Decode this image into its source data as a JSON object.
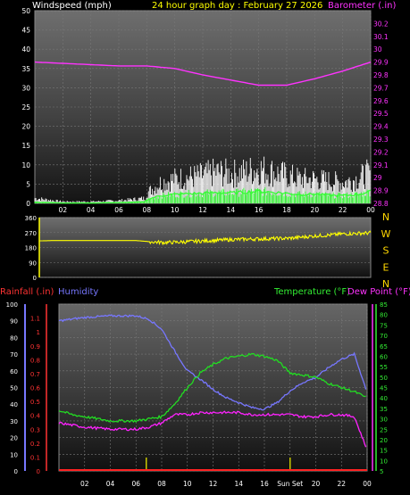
{
  "chart_data": [
    {
      "type": "line",
      "title": "24 hour graph day : February 27 2026",
      "ylabel": "Windspeed (mph)",
      "y2label": "Barometer (.in)",
      "ylim": [
        0,
        50
      ],
      "y2lim": [
        28.8,
        30.3
      ],
      "yticks": [
        0,
        5,
        10,
        15,
        20,
        25,
        30,
        35,
        40,
        45,
        50
      ],
      "y2ticks": [
        "28.8",
        "28.9",
        "29",
        "29.1",
        "29.2",
        "29.3",
        "29.4",
        "29.5",
        "29.6",
        "29.7",
        "29.8",
        "29.9",
        "30",
        "30.1",
        "30.2"
      ],
      "xticks": [
        "02",
        "04",
        "06",
        "08",
        "10",
        "12",
        "14",
        "16",
        "18",
        "20",
        "22",
        "00"
      ],
      "colors": {
        "wind_gust": "#ffffff",
        "wind_avg": "#33ff33",
        "barometer": "#ff33ff",
        "title": "#ffff00"
      },
      "series": [
        {
          "key": "barometer",
          "x": [
            0,
            2,
            4,
            6,
            8,
            10,
            12,
            14,
            16,
            18,
            20,
            22,
            24
          ],
          "values": [
            29.9,
            29.89,
            29.88,
            29.87,
            29.87,
            29.85,
            29.8,
            29.76,
            29.72,
            29.72,
            29.77,
            29.83,
            29.9
          ]
        },
        {
          "key": "wind_gust",
          "x": [
            0,
            2,
            4,
            6,
            7.9,
            8,
            9,
            10,
            11,
            12,
            13,
            14,
            15,
            16,
            17,
            18,
            19,
            20,
            21,
            22,
            23,
            24
          ],
          "values": [
            1.5,
            0.5,
            0.5,
            0.8,
            1.5,
            3,
            6,
            7,
            7.5,
            8,
            9,
            8.5,
            9,
            10,
            9,
            8,
            7,
            7,
            6.5,
            6,
            7,
            9
          ]
        },
        {
          "key": "wind_avg",
          "x": [
            0,
            2,
            4,
            6,
            7.9,
            8,
            9,
            10,
            11,
            12,
            13,
            14,
            15,
            16,
            17,
            18,
            19,
            20,
            21,
            22,
            23,
            24
          ],
          "values": [
            0.3,
            0.1,
            0.1,
            0.2,
            0.4,
            1,
            2,
            2.3,
            2.5,
            2.6,
            2.8,
            2.7,
            2.9,
            3.1,
            2.9,
            2.6,
            2.3,
            2.4,
            2.1,
            2.0,
            2.3,
            3
          ]
        }
      ]
    },
    {
      "type": "line",
      "y2labels": [
        "N",
        "W",
        "S",
        "E",
        "N"
      ],
      "ylim": [
        0,
        360
      ],
      "yticks": [
        0,
        90,
        180,
        270,
        360
      ],
      "xlim": [
        0,
        24
      ],
      "colors": {
        "direction": "#ffff00",
        "y2labels": "#ffd700"
      },
      "series": [
        {
          "key": "direction",
          "x": [
            0,
            1,
            4,
            7,
            8,
            9,
            10,
            12,
            14,
            16,
            18,
            19,
            20,
            21,
            22,
            24
          ],
          "values": [
            220,
            222,
            222,
            222,
            215,
            210,
            212,
            220,
            228,
            232,
            235,
            242,
            250,
            255,
            262,
            268
          ]
        }
      ]
    },
    {
      "type": "line",
      "ylabel": "Rainfall (.in)",
      "ylabel2": "Humidity",
      "y2label": "Temperature (°F)",
      "y2label2": "Dew Point (°F)",
      "xticks": [
        "02",
        "04",
        "06",
        "08",
        "10",
        "12",
        "14",
        "16",
        "Sun Set",
        "20",
        "22",
        "00"
      ],
      "humidity_ticks": [
        0,
        10,
        20,
        30,
        40,
        50,
        60,
        70,
        80,
        90,
        100
      ],
      "rain_ticks": [
        "0",
        "0.1",
        "0.2",
        "0.3",
        "0.4",
        "0.5",
        "0.6",
        "0.7",
        "0.8",
        "0.9",
        "1",
        "1.1"
      ],
      "temp_ticks": [
        5,
        10,
        15,
        20,
        25,
        30,
        35,
        40,
        45,
        50,
        55,
        60,
        65,
        70,
        75,
        80,
        85
      ],
      "rain_lim": [
        0,
        1.2
      ],
      "humidity_lim": [
        0,
        100
      ],
      "temp_lim": [
        5,
        85
      ],
      "sun_markers": [
        6.8,
        18.0
      ],
      "colors": {
        "humidity": "#7777ff",
        "temperature": "#22dd22",
        "dewpoint": "#ff22ff",
        "rainfall": "#ff2222",
        "sun": "#c8c800"
      },
      "series": [
        {
          "key": "humidity",
          "x": [
            0,
            1,
            2,
            4,
            6,
            7,
            8,
            9,
            10,
            11,
            12,
            13,
            14,
            15,
            16,
            17,
            18,
            19,
            20,
            21,
            22,
            23,
            24
          ],
          "values": [
            90,
            91,
            92,
            93,
            93,
            91,
            85,
            72,
            60,
            55,
            49,
            44,
            41,
            38,
            37,
            41,
            48,
            53,
            56,
            62,
            67,
            70,
            47
          ]
        },
        {
          "key": "temperature",
          "x": [
            0,
            1,
            2,
            4,
            6,
            7,
            8,
            9,
            10,
            11,
            12,
            13,
            14,
            15,
            16,
            17,
            18,
            19,
            20,
            21,
            22,
            23,
            24
          ],
          "values": [
            34,
            32,
            31,
            29,
            29,
            30,
            31,
            37,
            45,
            52,
            56,
            59,
            60,
            61,
            60,
            58,
            52,
            51,
            50,
            47,
            45,
            43,
            40
          ]
        },
        {
          "key": "dewpoint",
          "x": [
            0,
            1,
            2,
            4,
            6,
            7,
            8,
            9,
            10,
            11,
            12,
            13,
            14,
            15,
            16,
            17,
            18,
            19,
            20,
            21,
            22,
            23,
            24
          ],
          "values": [
            28,
            27,
            26,
            25,
            25,
            26,
            28,
            32,
            32,
            33,
            33,
            33,
            33,
            32,
            32,
            32,
            32,
            31,
            31,
            32,
            32,
            31,
            15
          ]
        },
        {
          "key": "rainfall",
          "x": [
            0,
            24
          ],
          "values": [
            0,
            0
          ]
        }
      ]
    }
  ]
}
